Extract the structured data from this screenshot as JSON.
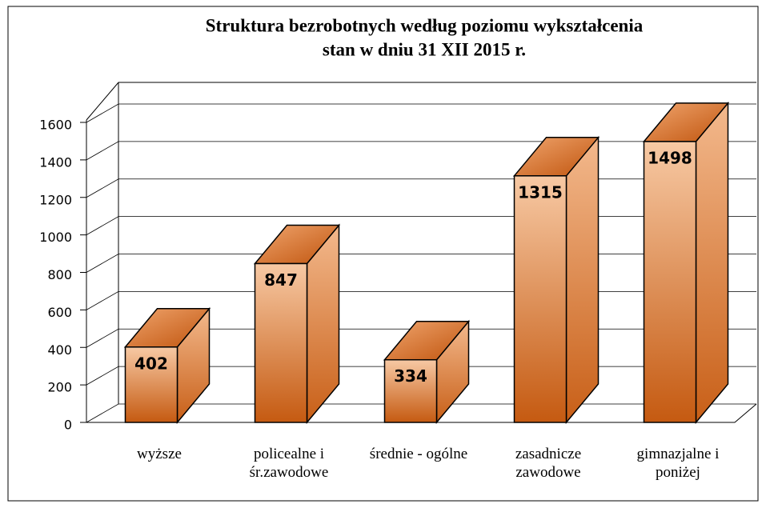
{
  "chart_data": {
    "type": "bar3d",
    "title": "Struktura bezrobotnych według poziomu wykształcenia",
    "subtitle": "stan w dniu 31 XII 2015 r.",
    "categories": [
      "wyższe",
      "policealne i śr.zawodowe",
      "średnie - ogólne",
      "zasadnicze zawodowe",
      "gimnazjalne i poniżej"
    ],
    "values": [
      402,
      847,
      334,
      1315,
      1498
    ],
    "color": "#c55a11",
    "ylim": [
      0,
      1600
    ],
    "yticks": [
      0,
      200,
      400,
      600,
      800,
      1000,
      1200,
      1400,
      1600
    ],
    "grid": true
  }
}
